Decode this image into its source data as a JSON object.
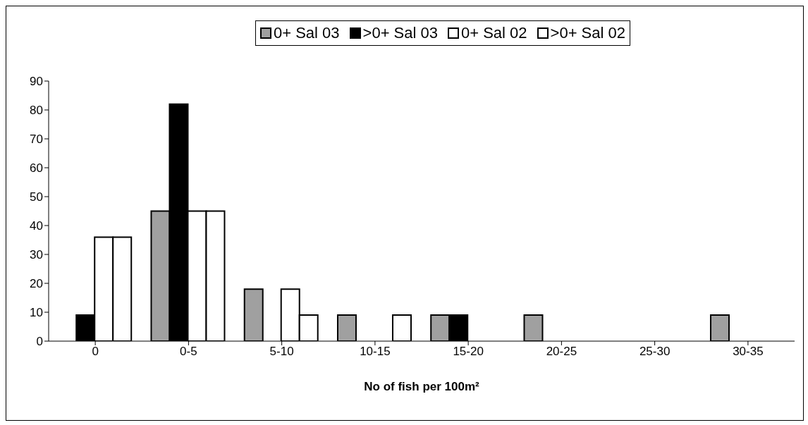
{
  "chart_data": {
    "type": "bar",
    "xlabel": "No of fish per 100m²",
    "categories": [
      "0",
      "0-5",
      "5-10",
      "10-15",
      "15-20",
      "20-25",
      "25-30",
      "30-35"
    ],
    "series": [
      {
        "name": "0+ Sal 03",
        "color": "#a0a0a0",
        "values": [
          0,
          45,
          18,
          9,
          9,
          9,
          0,
          9
        ]
      },
      {
        "name": ">0+ Sal 03",
        "color": "#000000",
        "values": [
          9,
          82,
          0,
          0,
          9,
          0,
          0,
          0
        ]
      },
      {
        "name": "0+ Sal 02",
        "color": "#ffffff",
        "values": [
          36,
          45,
          18,
          0,
          0,
          0,
          0,
          0
        ]
      },
      {
        "name": ">0+ Sal 02",
        "color": "#ffffff",
        "values": [
          36,
          45,
          9,
          9,
          0,
          0,
          0,
          0
        ]
      }
    ],
    "ylim": [
      0,
      90
    ],
    "yticks": [
      0,
      10,
      20,
      30,
      40,
      50,
      60,
      70,
      80,
      90
    ],
    "grid": false,
    "legend": "top"
  }
}
